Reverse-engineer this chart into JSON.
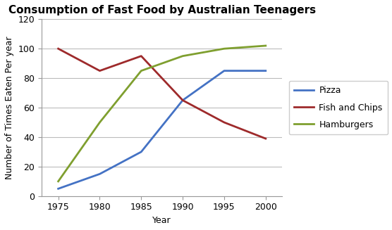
{
  "title": "Consumption of Fast Food by Australian Teenagers",
  "xlabel": "Year",
  "ylabel": "Number of Times Eaten Per year",
  "years": [
    1975,
    1980,
    1985,
    1990,
    1995,
    2000
  ],
  "pizza": [
    5,
    15,
    30,
    65,
    85,
    85
  ],
  "fish_and_chips": [
    100,
    85,
    95,
    65,
    50,
    39
  ],
  "hamburgers": [
    10,
    50,
    85,
    95,
    100,
    102
  ],
  "pizza_color": "#4472c4",
  "fish_color": "#9e2a2b",
  "hamburgers_color": "#7f9f2f",
  "ylim": [
    0,
    120
  ],
  "xlim": [
    1973,
    2002
  ],
  "xticks": [
    1975,
    1980,
    1985,
    1990,
    1995,
    2000
  ],
  "yticks": [
    0,
    20,
    40,
    60,
    80,
    100,
    120
  ],
  "linewidth": 2.0,
  "bg_color": "#ffffff",
  "grid_color": "#bbbbbb",
  "legend_labels": [
    "Pizza",
    "Fish and Chips",
    "Hamburgers"
  ],
  "title_fontsize": 11,
  "axis_fontsize": 9,
  "tick_fontsize": 9,
  "legend_fontsize": 9
}
